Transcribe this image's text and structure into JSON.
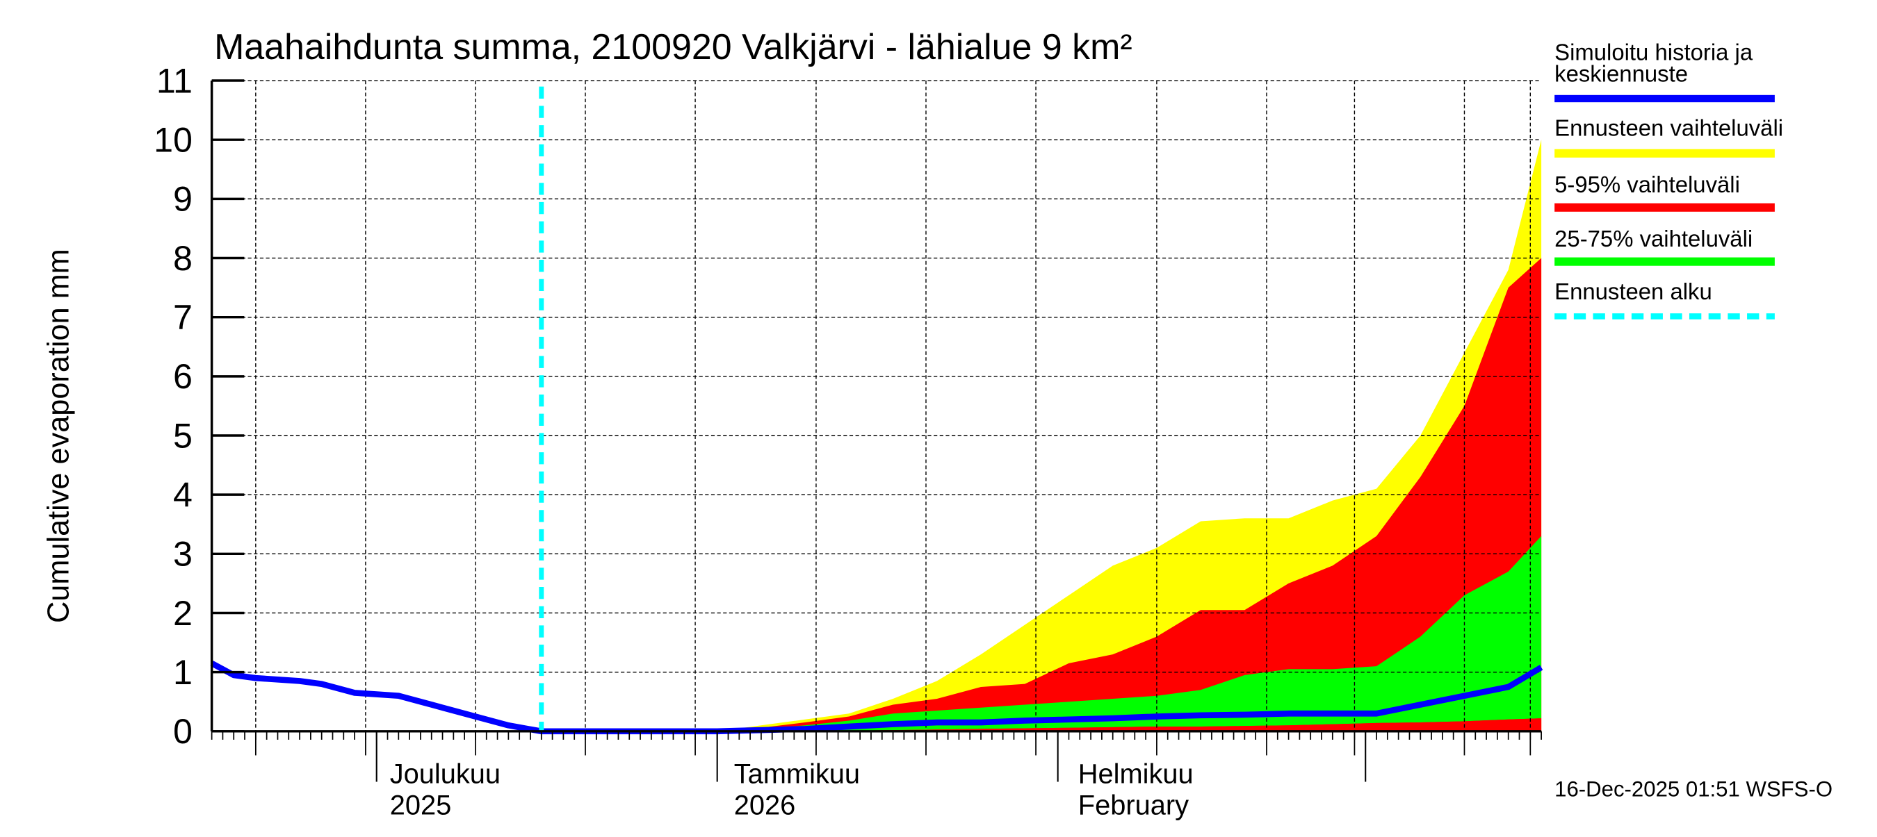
{
  "chart_data": {
    "type": "area",
    "title": "Maahaihdunta summa, 2100920 Valkjärvi - lähialue 9 km²",
    "xlabel": "",
    "ylabel": "Cumulative evaporation   mm",
    "ylim": [
      0,
      11
    ],
    "yticks": [
      0,
      1,
      2,
      3,
      4,
      5,
      6,
      7,
      8,
      9,
      10,
      11
    ],
    "grid": true,
    "legend_position": "right",
    "x_tick_labels": [
      {
        "line1": "Joulukuu",
        "line2": "2025"
      },
      {
        "line1": "Tammikuu",
        "line2": "2026"
      },
      {
        "line1": "Helmikuu",
        "line2": "February"
      }
    ],
    "x_range": [
      "2025-11-16",
      "2026-03-17"
    ],
    "forecast_start": "2025-12-16",
    "x": [
      "2025-11-16",
      "2025-11-18",
      "2025-11-20",
      "2025-11-24",
      "2025-11-26",
      "2025-11-29",
      "2025-12-03",
      "2025-12-06",
      "2025-12-10",
      "2025-12-13",
      "2025-12-16",
      "2025-12-24",
      "2026-01-01",
      "2026-01-05",
      "2026-01-09",
      "2026-01-13",
      "2026-01-17",
      "2026-01-21",
      "2026-01-25",
      "2026-01-29",
      "2026-02-02",
      "2026-02-06",
      "2026-02-10",
      "2026-02-14",
      "2026-02-18",
      "2026-02-22",
      "2026-02-26",
      "2026-03-02",
      "2026-03-06",
      "2026-03-10",
      "2026-03-14",
      "2026-03-17"
    ],
    "series": [
      {
        "name": "Simuloitu historia ja keskiennuste",
        "color": "#0000ff",
        "values": [
          1.15,
          0.95,
          0.9,
          0.85,
          0.8,
          0.65,
          0.6,
          0.45,
          0.25,
          0.1,
          0.0,
          0.0,
          0.0,
          0.02,
          0.04,
          0.08,
          0.12,
          0.15,
          0.15,
          0.18,
          0.2,
          0.22,
          0.25,
          0.27,
          0.28,
          0.3,
          0.3,
          0.3,
          0.45,
          0.6,
          0.75,
          1.08
        ]
      },
      {
        "name": "Ennusteen vaihteluväli (max)",
        "color": "#ffff00",
        "values": [
          null,
          null,
          null,
          null,
          null,
          null,
          null,
          null,
          null,
          null,
          0.0,
          0.0,
          0.0,
          0.1,
          0.2,
          0.3,
          0.55,
          0.85,
          1.3,
          1.8,
          2.3,
          2.8,
          3.1,
          3.55,
          3.6,
          3.6,
          3.9,
          4.1,
          5.0,
          6.4,
          7.8,
          10.0
        ]
      },
      {
        "name": "5-95% vaihteluväli (upper)",
        "color": "#ff0000",
        "values": [
          null,
          null,
          null,
          null,
          null,
          null,
          null,
          null,
          null,
          null,
          0.0,
          0.0,
          0.0,
          0.06,
          0.15,
          0.25,
          0.45,
          0.55,
          0.75,
          0.8,
          1.15,
          1.3,
          1.6,
          2.05,
          2.05,
          2.5,
          2.8,
          3.3,
          4.3,
          5.5,
          7.5,
          8.0
        ]
      },
      {
        "name": "25-75% vaihteluväli (upper)",
        "color": "#00ff00",
        "values": [
          null,
          null,
          null,
          null,
          null,
          null,
          null,
          null,
          null,
          null,
          0.0,
          0.0,
          0.0,
          0.04,
          0.1,
          0.18,
          0.3,
          0.35,
          0.4,
          0.45,
          0.5,
          0.55,
          0.6,
          0.7,
          0.95,
          1.05,
          1.05,
          1.1,
          1.6,
          2.3,
          2.7,
          3.3
        ]
      },
      {
        "name": "25-75% vaihteluväli (lower)",
        "color": "#00ff00",
        "values": [
          null,
          null,
          null,
          null,
          null,
          null,
          null,
          null,
          null,
          null,
          0.0,
          0.0,
          0.0,
          0.0,
          0.0,
          0.01,
          0.02,
          0.03,
          0.04,
          0.05,
          0.06,
          0.07,
          0.08,
          0.08,
          0.09,
          0.1,
          0.12,
          0.14,
          0.15,
          0.17,
          0.2,
          0.22
        ]
      },
      {
        "name": "Ennusteen alku",
        "color": "#00ffff",
        "values": []
      }
    ]
  },
  "legend": {
    "items": [
      {
        "label_line1": "Simuloitu historia ja",
        "label_line2": "keskiennuste",
        "color": "#0000ff",
        "style": "solid"
      },
      {
        "label_line1": "Ennusteen vaihteluväli",
        "label_line2": "",
        "color": "#ffff00",
        "style": "solid"
      },
      {
        "label_line1": "5-95% vaihteluväli",
        "label_line2": "",
        "color": "#ff0000",
        "style": "solid"
      },
      {
        "label_line1": "25-75% vaihteluväli",
        "label_line2": "",
        "color": "#00ff00",
        "style": "solid"
      },
      {
        "label_line1": "Ennusteen alku",
        "label_line2": "",
        "color": "#00ffff",
        "style": "dashed"
      }
    ]
  },
  "footer": {
    "timestamp": "16-Dec-2025 01:51 WSFS-O"
  }
}
